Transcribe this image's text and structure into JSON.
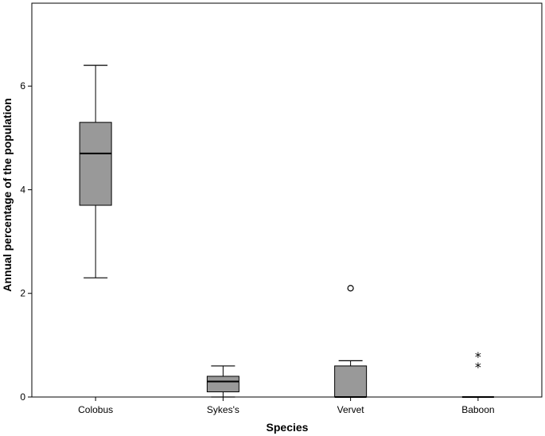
{
  "chart_data": {
    "type": "box",
    "title": "",
    "xlabel": "Species",
    "ylabel": "Annual percentage of the population",
    "ylim": [
      0,
      7.6
    ],
    "yticks": [
      0,
      2,
      4,
      6
    ],
    "grid": false,
    "categories": [
      "Colobus",
      "Sykes's",
      "Vervet",
      "Baboon"
    ],
    "boxes": [
      {
        "category": "Colobus",
        "min": 2.3,
        "q1": 3.7,
        "median": 4.7,
        "q3": 5.3,
        "max": 6.4,
        "outliers": [],
        "extremes": []
      },
      {
        "category": "Sykes's",
        "min": 0.0,
        "q1": 0.1,
        "median": 0.3,
        "q3": 0.4,
        "max": 0.6,
        "outliers": [],
        "extremes": []
      },
      {
        "category": "Vervet",
        "min": 0.0,
        "q1": 0.0,
        "median": 0.0,
        "q3": 0.6,
        "max": 0.7,
        "outliers": [
          2.1
        ],
        "extremes": []
      },
      {
        "category": "Baboon",
        "min": 0.0,
        "q1": 0.0,
        "median": 0.0,
        "q3": 0.0,
        "max": 0.0,
        "outliers": [],
        "extremes": [
          0.6,
          0.8
        ]
      }
    ],
    "colors": {
      "box_fill": "#999999",
      "stroke": "#000000"
    }
  }
}
